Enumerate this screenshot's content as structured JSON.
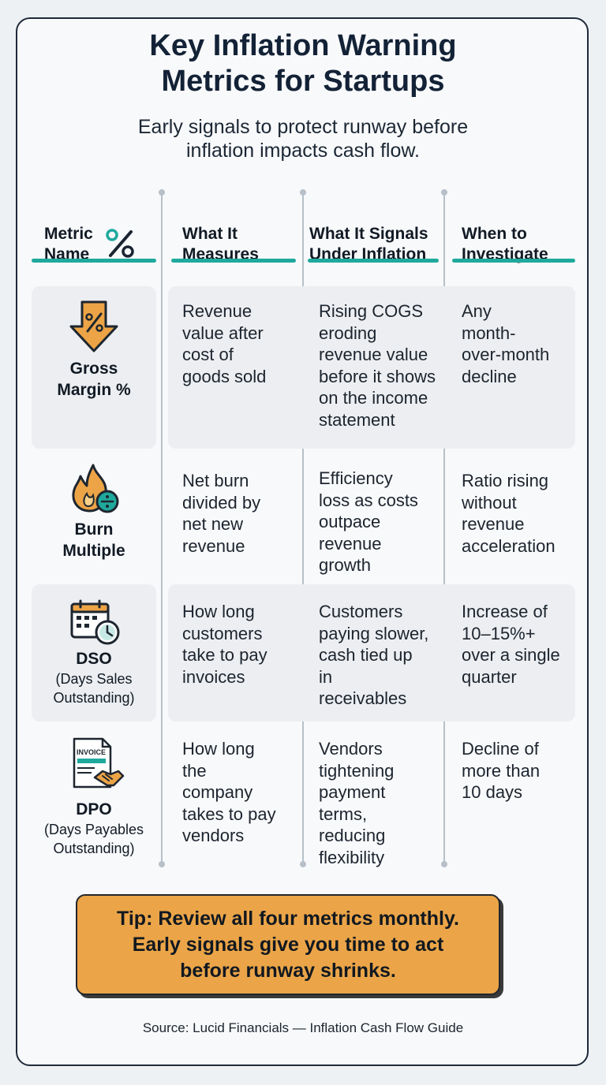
{
  "title_lines": [
    "Key Inflation Warning",
    "Metrics for Startups"
  ],
  "subtitle_lines": [
    "Early signals to protect runway before",
    "inflation impacts cash flow."
  ],
  "headers": {
    "metric": [
      "Metric",
      "Name"
    ],
    "measures": [
      "What It",
      "Measures"
    ],
    "signals": [
      "What It Signals",
      "Under Inflation"
    ],
    "investigate": [
      "When to",
      "Investigate"
    ]
  },
  "rows": [
    {
      "name": [
        "Gross",
        "Margin %"
      ],
      "sub": [],
      "icon": "percent-down-arrow-icon",
      "measures": [
        "Revenue",
        "value after",
        "cost of",
        "goods sold"
      ],
      "signals": [
        "Rising COGS",
        "eroding",
        "revenue value",
        "before it shows",
        "on the income",
        "statement"
      ],
      "investigate": [
        "Any",
        "month-",
        "over-month",
        "decline"
      ]
    },
    {
      "name": [
        "Burn",
        "Multiple"
      ],
      "sub": [],
      "icon": "flame-divide-icon",
      "measures": [
        "Net burn",
        "divided by",
        "net new",
        "revenue"
      ],
      "signals": [
        "Efficiency",
        "loss as costs",
        "outpace",
        "revenue",
        "growth"
      ],
      "investigate": [
        "Ratio rising",
        "without",
        "revenue",
        "acceleration"
      ]
    },
    {
      "name": [
        "DSO"
      ],
      "sub": [
        "(Days Sales",
        "Outstanding)"
      ],
      "icon": "calendar-clock-icon",
      "measures": [
        "How long",
        "customers",
        "take to pay",
        "invoices"
      ],
      "signals": [
        "Customers",
        "paying slower,",
        "cash tied up",
        "in",
        "receivables"
      ],
      "investigate": [
        "Increase of",
        "10–15%+",
        "over a single",
        "quarter"
      ]
    },
    {
      "name": [
        "DPO"
      ],
      "sub": [
        "(Days Payables",
        "Outstanding)"
      ],
      "icon": "invoice-handshake-icon",
      "invoice_label": "INVOICE",
      "measures": [
        "How long",
        "the",
        "company",
        "takes to pay",
        "vendors"
      ],
      "signals": [
        "Vendors",
        "tightening",
        "payment",
        "terms,",
        "reducing",
        "flexibility"
      ],
      "investigate": [
        "Decline of",
        "more than",
        "10 days"
      ]
    }
  ],
  "tip_lines": [
    "Tip: Review all four metrics monthly.",
    "Early signals give you time to act",
    "before runway shrinks."
  ],
  "source": "Source: Lucid Financials — Inflation Cash Flow Guide",
  "colors": {
    "accent_teal": "#1fa99d",
    "accent_orange": "#eba548",
    "title_navy": "#132236",
    "row_shade": "#eceef1"
  }
}
